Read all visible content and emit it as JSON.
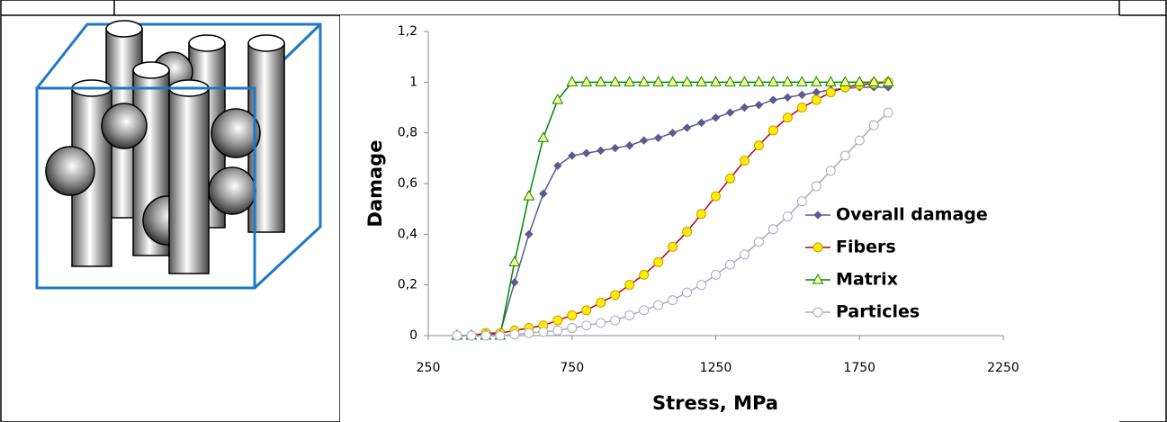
{
  "chart_data": {
    "type": "line",
    "xlabel": "Stress, MPa",
    "ylabel": "Damage",
    "x": [
      350,
      400,
      450,
      500,
      550,
      600,
      650,
      700,
      750,
      800,
      850,
      900,
      950,
      1000,
      1050,
      1100,
      1150,
      1200,
      1250,
      1300,
      1350,
      1400,
      1450,
      1500,
      1550,
      1600,
      1650,
      1700,
      1750,
      1800,
      1850
    ],
    "series": [
      {
        "name": "Overall damage",
        "color": "#5b5b8f",
        "marker": "diamond",
        "marker_fill": "#5b5b8f",
        "values": [
          0,
          0,
          0,
          0.01,
          0.21,
          0.4,
          0.56,
          0.67,
          0.71,
          0.72,
          0.73,
          0.74,
          0.75,
          0.77,
          0.78,
          0.8,
          0.82,
          0.84,
          0.86,
          0.88,
          0.9,
          0.91,
          0.93,
          0.94,
          0.95,
          0.96,
          0.97,
          0.975,
          0.98,
          0.98,
          0.98
        ]
      },
      {
        "name": "Fibers",
        "color": "#c00000",
        "marker": "circle",
        "marker_fill": "#ffee00",
        "values": [
          0,
          0,
          0.01,
          0.01,
          0.02,
          0.03,
          0.04,
          0.06,
          0.08,
          0.1,
          0.13,
          0.16,
          0.2,
          0.24,
          0.29,
          0.35,
          0.41,
          0.48,
          0.55,
          0.62,
          0.69,
          0.75,
          0.81,
          0.86,
          0.9,
          0.93,
          0.96,
          0.98,
          0.99,
          0.995,
          1
        ]
      },
      {
        "name": "Matrix",
        "color": "#008a00",
        "marker": "triangle",
        "marker_fill": "#ffff99",
        "values": [
          0,
          0,
          0,
          0,
          0.29,
          0.55,
          0.78,
          0.93,
          1,
          1,
          1,
          1,
          1,
          1,
          1,
          1,
          1,
          1,
          1,
          1,
          1,
          1,
          1,
          1,
          1,
          1,
          1,
          1,
          1,
          1,
          1
        ]
      },
      {
        "name": "Particles",
        "color": "#a8a8c8",
        "marker": "circle",
        "marker_fill": "#ffffff",
        "values": [
          0,
          0,
          0,
          0,
          0.005,
          0.01,
          0.015,
          0.02,
          0.03,
          0.04,
          0.05,
          0.06,
          0.08,
          0.1,
          0.12,
          0.14,
          0.17,
          0.2,
          0.24,
          0.28,
          0.32,
          0.37,
          0.42,
          0.47,
          0.53,
          0.59,
          0.65,
          0.71,
          0.77,
          0.83,
          0.88
        ]
      }
    ],
    "xlim": [
      250,
      2250
    ],
    "xticks": [
      250,
      750,
      1250,
      1750,
      2250
    ],
    "ylim": [
      0,
      1.2
    ],
    "yticks": [
      0,
      {
        "value": 0.2,
        "label": "0,2"
      },
      {
        "value": 0.4,
        "label": "0,4"
      },
      {
        "value": 0.6,
        "label": "0,6"
      },
      {
        "value": 0.8,
        "label": "0,8"
      },
      1,
      {
        "value": 1.2,
        "label": "1,2"
      }
    ],
    "grid": false,
    "legend": "right"
  }
}
